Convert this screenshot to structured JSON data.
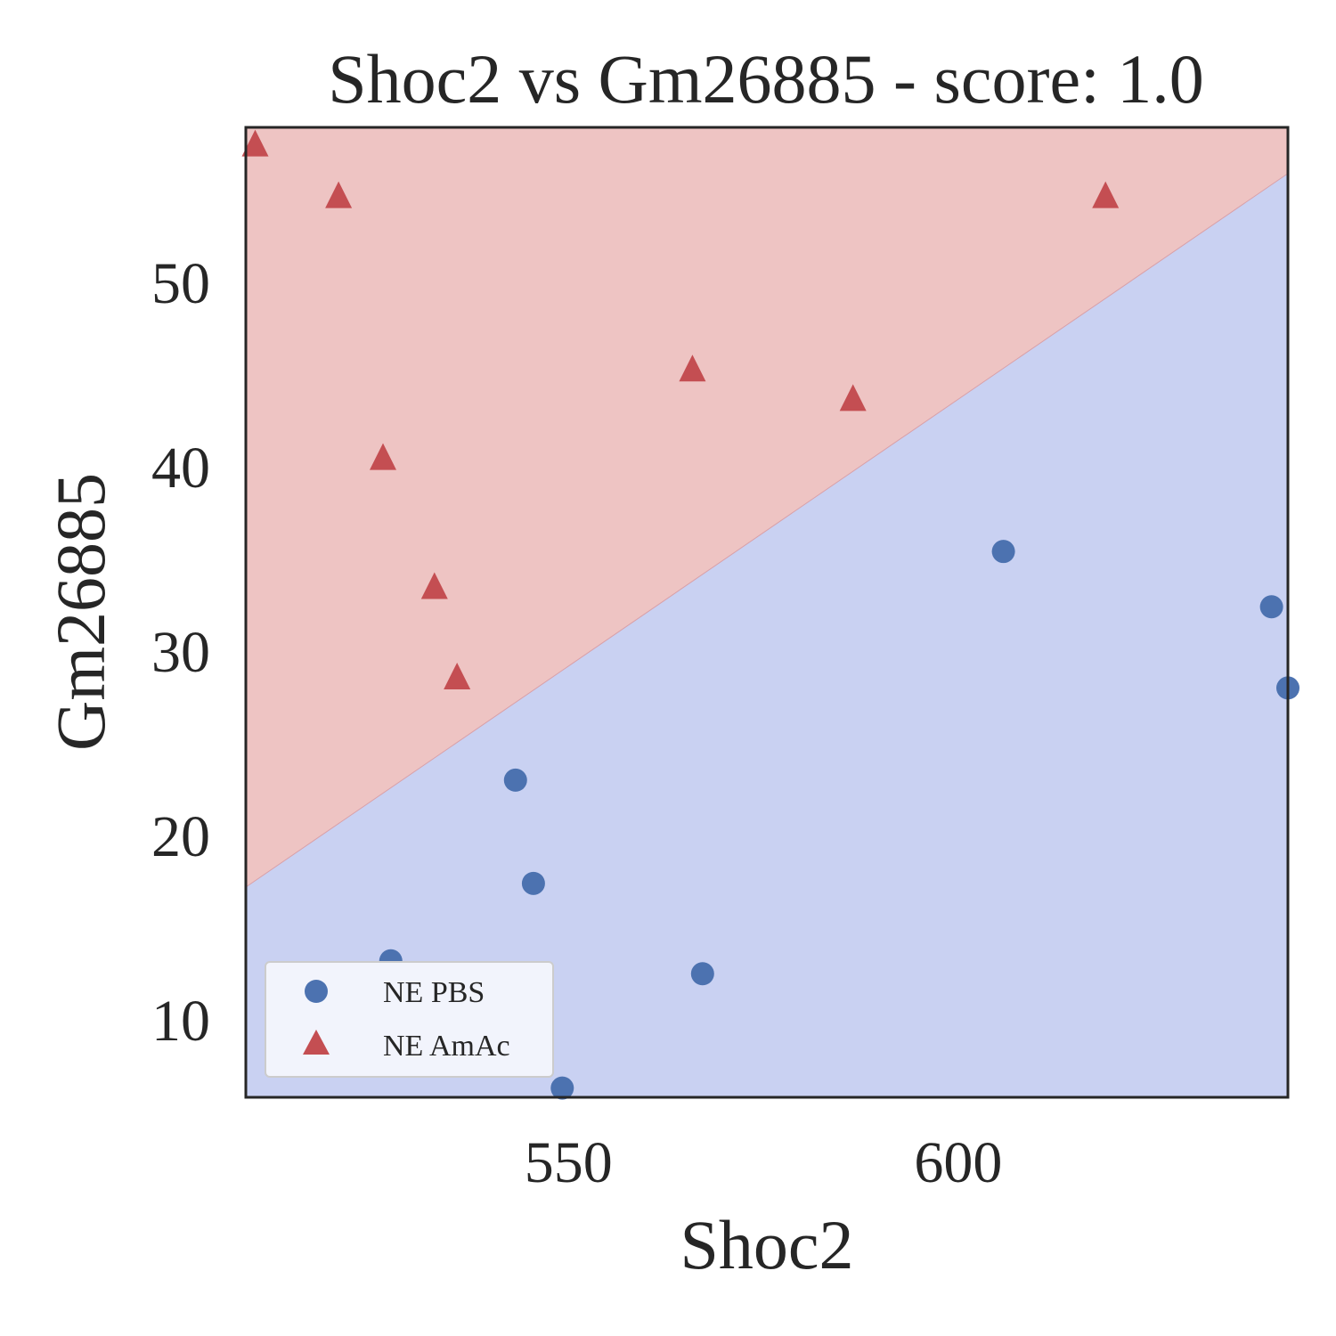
{
  "chart_data": {
    "type": "scatter",
    "title": "Shoc2 vs Gm26885 - score: 1.0",
    "xlabel": "Shoc2",
    "ylabel": "Gm26885",
    "xlim": [
      508.6,
      642.3
    ],
    "ylim": [
      5.8,
      58.4
    ],
    "xticks": [
      550,
      600
    ],
    "yticks": [
      10,
      20,
      30,
      40,
      50
    ],
    "grid": false,
    "legend_position": "lower-left",
    "decision_boundary": {
      "points": [
        [
          508.6,
          17.2
        ],
        [
          642.3,
          55.9
        ]
      ],
      "upper_region_class": "NE AmAc",
      "lower_region_class": "NE PBS"
    },
    "colors": {
      "upper_region": "#eec4c3",
      "lower_region": "#c9d1f2",
      "pbs_marker": "#4c72b0",
      "amac_marker": "#c44e52",
      "axes": "#262626"
    },
    "series": [
      {
        "name": "NE PBS",
        "marker": "circle",
        "points": [
          [
            527.2,
            13.2
          ],
          [
            543.2,
            23.0
          ],
          [
            545.5,
            17.4
          ],
          [
            549.2,
            6.3
          ],
          [
            567.2,
            12.5
          ],
          [
            605.8,
            35.4
          ],
          [
            640.2,
            32.4
          ],
          [
            642.3,
            28.0
          ]
        ]
      },
      {
        "name": "NE AmAc",
        "marker": "triangle",
        "points": [
          [
            509.8,
            57.5
          ],
          [
            520.5,
            54.7
          ],
          [
            526.2,
            40.5
          ],
          [
            532.8,
            33.5
          ],
          [
            535.7,
            28.6
          ],
          [
            565.9,
            45.3
          ],
          [
            586.5,
            43.7
          ],
          [
            618.9,
            54.7
          ]
        ]
      }
    ]
  }
}
